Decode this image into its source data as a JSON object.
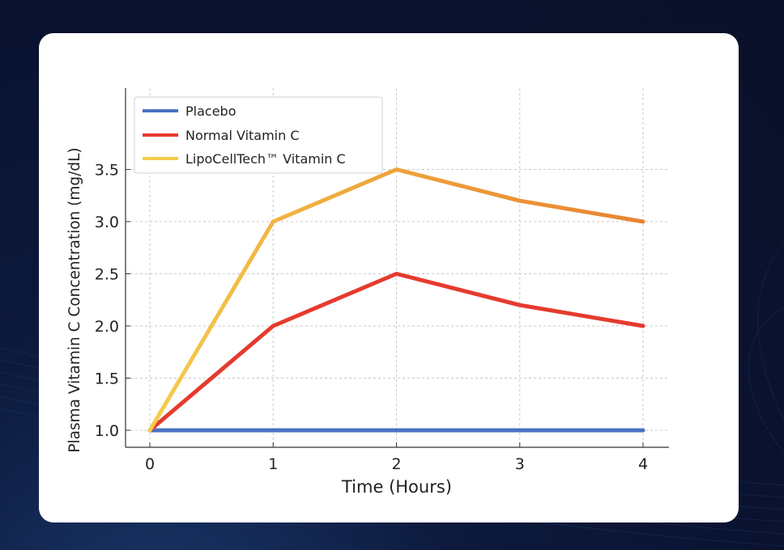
{
  "colors": {
    "background": "#0b1128",
    "card": "#ffffff",
    "placebo": "#4a72c4",
    "normal": "#e63a2e",
    "lipo_start": "#f4cd4e",
    "lipo_end": "#e88432"
  },
  "chart_data": {
    "type": "line",
    "xlabel": "Time (Hours)",
    "ylabel": "Plasma Vitamin C Concentration (mg/dL)",
    "x": [
      0,
      1,
      2,
      3,
      4
    ],
    "xlim": [
      -0.2,
      4.2
    ],
    "ylim": [
      0.9,
      3.65
    ],
    "x_ticks": [
      "0",
      "1",
      "2",
      "3",
      "4"
    ],
    "y_ticks": [
      "1.0",
      "1.5",
      "2.0",
      "2.5",
      "3.0",
      "3.5"
    ],
    "grid": "dashed",
    "legend": "top-left",
    "series": [
      {
        "name": "Placebo",
        "values": [
          1.0,
          1.0,
          1.0,
          1.0,
          1.0
        ]
      },
      {
        "name": "Normal Vitamin C",
        "values": [
          1.0,
          2.0,
          2.5,
          2.2,
          2.0
        ]
      },
      {
        "name": "LipoCellTech™ Vitamin C",
        "values": [
          1.0,
          3.0,
          3.5,
          3.2,
          3.0
        ]
      }
    ]
  }
}
